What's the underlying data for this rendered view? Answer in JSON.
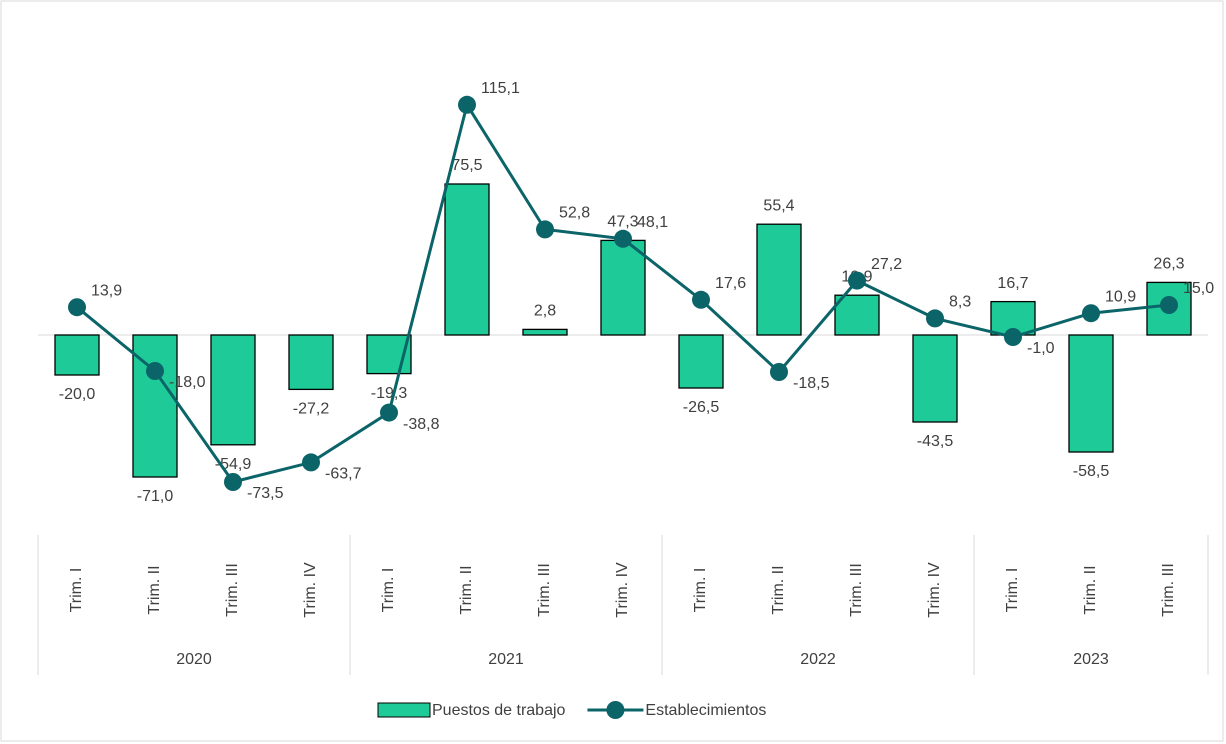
{
  "chart_data": {
    "type": "bar-line",
    "groups": [
      {
        "name": "2020",
        "categories": [
          "Trim. I",
          "Trim. II",
          "Trim. III",
          "Trim. IV"
        ]
      },
      {
        "name": "2021",
        "categories": [
          "Trim. I",
          "Trim. II",
          "Trim. III",
          "Trim. IV"
        ]
      },
      {
        "name": "2022",
        "categories": [
          "Trim. I",
          "Trim. II",
          "Trim. III",
          "Trim. IV"
        ]
      },
      {
        "name": "2023",
        "categories": [
          "Trim. I",
          "Trim. II",
          "Trim. III"
        ]
      }
    ],
    "series": [
      {
        "name": "Puestos de trabajo",
        "type": "bar",
        "color": "#1ecb98",
        "values": [
          -20.0,
          -71.0,
          -54.9,
          -27.2,
          -19.3,
          75.5,
          2.8,
          47.3,
          -26.5,
          55.4,
          19.9,
          -43.5,
          16.7,
          -58.5,
          26.3
        ],
        "value_labels": [
          "-20,0",
          "-71,0",
          "-54,9",
          "-27,2",
          "-19,3",
          "75,5",
          "2,8",
          "47,3",
          "-26,5",
          "55,4",
          "19,9",
          "-43,5",
          "16,7",
          "-58,5",
          "26,3"
        ]
      },
      {
        "name": "Establecimientos",
        "type": "line",
        "color": "#0b6468",
        "values": [
          13.9,
          -18.0,
          -73.5,
          -63.7,
          -38.8,
          115.1,
          52.8,
          48.1,
          17.6,
          -18.5,
          27.2,
          8.3,
          -1.0,
          10.9,
          15.0
        ],
        "value_labels": [
          "13,9",
          "-18,0",
          "-73,5",
          "-63,7",
          "-38,8",
          "115,1",
          "52,8",
          "48,1",
          "17,6",
          "-18,5",
          "27,2",
          "8,3",
          "-1,0",
          "10,9",
          "15,0"
        ]
      }
    ],
    "legend": "bottom"
  }
}
